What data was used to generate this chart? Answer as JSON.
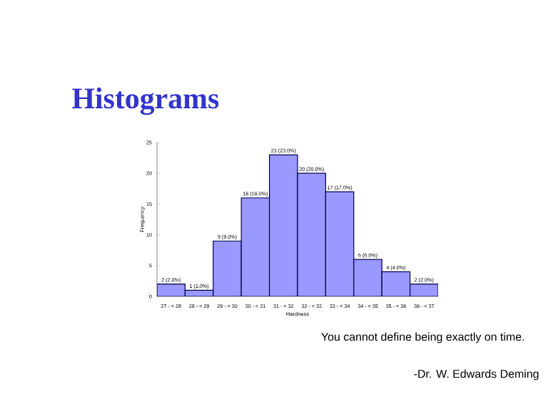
{
  "chart_data": {
    "type": "bar",
    "title": "Histograms",
    "categories": [
      "27 - < 28",
      "28 - < 29",
      "29 - < 30",
      "30 - < 31",
      "31 - < 32",
      "32 - < 33",
      "33 - < 34",
      "34 - < 35",
      "35 - < 36",
      "36 - < 37"
    ],
    "values": [
      2,
      1,
      9,
      16,
      23,
      20,
      17,
      6,
      4,
      2
    ],
    "value_labels": [
      "2 (2.0%)",
      "1 (1.0%)",
      "9 (9.0%)",
      "16 (16.0%)",
      "23 (23.0%)",
      "20 (20.0%)",
      "17 (17.0%)",
      "6 (6.0%)",
      "4 (4.0%)",
      "2 (2.0%)"
    ],
    "color": "#9999ff",
    "xlabel": "Hardness",
    "ylabel": "Frequency",
    "ylim": [
      0,
      25
    ],
    "yticks": [
      0,
      5,
      10,
      15,
      20,
      25
    ],
    "annotations": [
      "You cannot define being exactly on time.",
      "-Dr. W. Edwards Deming"
    ]
  }
}
